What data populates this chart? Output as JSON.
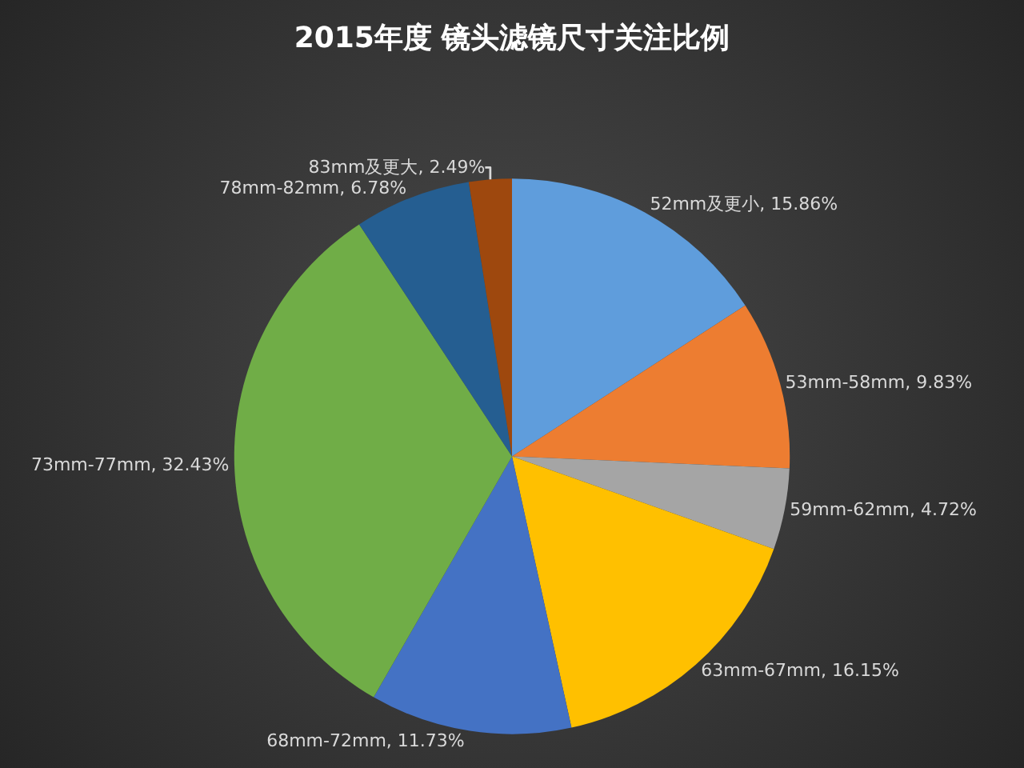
{
  "chart_data": {
    "type": "pie",
    "title": "2015年度 镜头滤镜尺寸关注比例",
    "categories": [
      "52mm及更小",
      "53mm-58mm",
      "59mm-62mm",
      "63mm-67mm",
      "68mm-72mm",
      "73mm-77mm",
      "78mm-82mm",
      "83mm及更大"
    ],
    "values": [
      15.86,
      9.83,
      4.72,
      16.15,
      11.73,
      32.43,
      6.78,
      2.49
    ],
    "value_labels": [
      "15.86%",
      "9.83%",
      "4.72%",
      "16.15%",
      "11.73%",
      "32.43%",
      "6.78%",
      "2.49%"
    ],
    "colors": [
      "#5f9ddc",
      "#ed7d31",
      "#a5a5a5",
      "#ffc000",
      "#4472c4",
      "#70ad47",
      "#255e91",
      "#9e480e"
    ],
    "legend": false
  }
}
